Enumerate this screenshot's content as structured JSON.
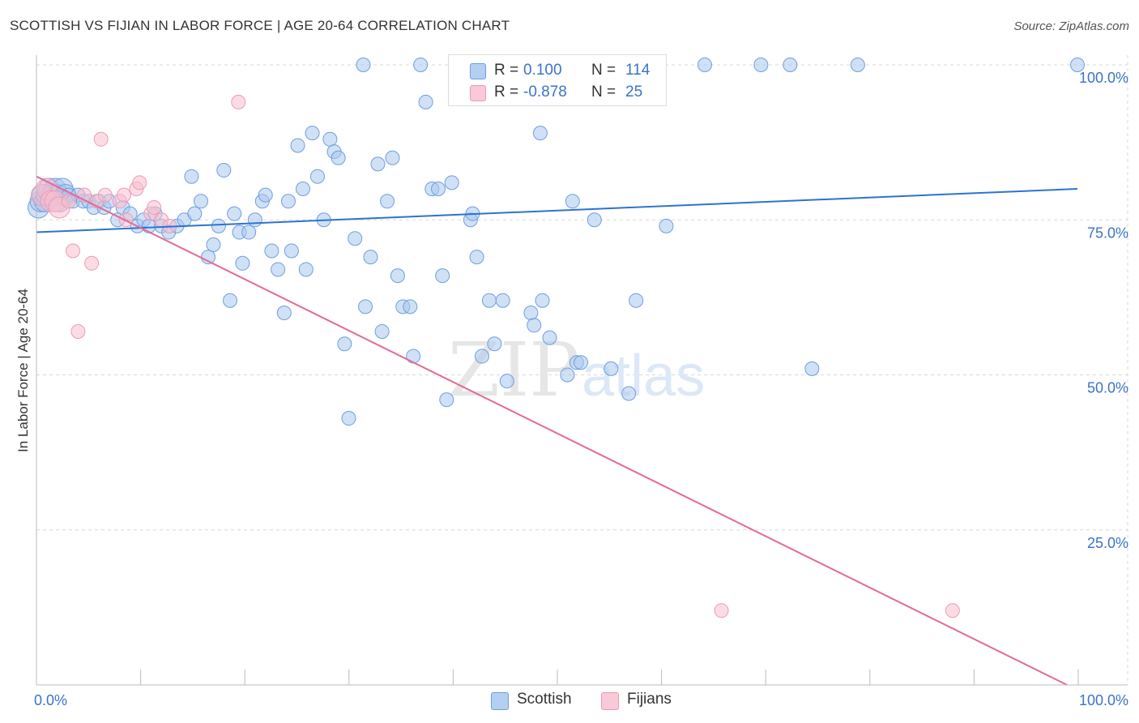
{
  "title": "SCOTTISH VS FIJIAN IN LABOR FORCE | AGE 20-64 CORRELATION CHART",
  "source": "Source: ZipAtlas.com",
  "watermark": {
    "zip": "ZIP",
    "atlas": "atlas"
  },
  "legend": {
    "r_label": "R =",
    "n_label": "N =",
    "series": [
      {
        "name": "Scottish",
        "r": "0.100",
        "n": "114",
        "color": "#9dc0ec"
      },
      {
        "name": "Fijians",
        "r": "-0.878",
        "n": "25",
        "color": "#f5b8cc"
      }
    ]
  },
  "colors": {
    "scottish_fill": "#a9c8ef",
    "scottish_stroke": "#6f9ede",
    "scottish_line": "#2e72d2",
    "fijian_fill": "#f7bfd0",
    "fijian_stroke": "#ee9ab5",
    "fijian_line": "#e36a96",
    "tick_label": "#3a73c8",
    "grid": "#d8d8d8"
  },
  "chart_data": {
    "type": "scatter",
    "xlabel": "",
    "ylabel": "In Labor Force | Age 20-64",
    "xlim": [
      0,
      100
    ],
    "ylim": [
      0,
      100
    ],
    "x_tick_labels": [
      {
        "value": 0,
        "label": "0.0%"
      },
      {
        "value": 100,
        "label": "100.0%"
      }
    ],
    "y_tick_labels": [
      {
        "value": 25,
        "label": "25.0%"
      },
      {
        "value": 50,
        "label": "50.0%"
      },
      {
        "value": 75,
        "label": "75.0%"
      },
      {
        "value": 100,
        "label": "100.0%"
      }
    ],
    "grid": true,
    "legend_position": "top-center",
    "series": [
      {
        "name": "Scottish",
        "trend": {
          "x": [
            0,
            100
          ],
          "y": [
            73.0,
            80.0
          ]
        },
        "points": [
          [
            0.2,
            77
          ],
          [
            0.4,
            78
          ],
          [
            0.6,
            79
          ],
          [
            0.8,
            78
          ],
          [
            1.0,
            79
          ],
          [
            1.2,
            80
          ],
          [
            1.5,
            79
          ],
          [
            1.8,
            80
          ],
          [
            2.0,
            79
          ],
          [
            2.2,
            78
          ],
          [
            2.5,
            80
          ],
          [
            2.8,
            79
          ],
          [
            3.1,
            79
          ],
          [
            3.5,
            78
          ],
          [
            4.0,
            79
          ],
          [
            4.5,
            78
          ],
          [
            5.0,
            78
          ],
          [
            5.5,
            77
          ],
          [
            6.0,
            78
          ],
          [
            6.5,
            77
          ],
          [
            7.0,
            78
          ],
          [
            7.8,
            75
          ],
          [
            8.3,
            77
          ],
          [
            9.0,
            76
          ],
          [
            9.7,
            74
          ],
          [
            10.3,
            75
          ],
          [
            10.8,
            74
          ],
          [
            11.4,
            76
          ],
          [
            12.0,
            74
          ],
          [
            12.7,
            73
          ],
          [
            13.5,
            74
          ],
          [
            14.2,
            75
          ],
          [
            14.9,
            82
          ],
          [
            15.2,
            76
          ],
          [
            15.8,
            78
          ],
          [
            16.5,
            69
          ],
          [
            17.0,
            71
          ],
          [
            17.5,
            74
          ],
          [
            18.0,
            83
          ],
          [
            18.6,
            62
          ],
          [
            19.0,
            76
          ],
          [
            19.5,
            73
          ],
          [
            19.8,
            68
          ],
          [
            20.4,
            73
          ],
          [
            21.0,
            75
          ],
          [
            21.7,
            78
          ],
          [
            22.0,
            79
          ],
          [
            22.6,
            70
          ],
          [
            23.2,
            67
          ],
          [
            23.8,
            60
          ],
          [
            24.2,
            78
          ],
          [
            24.5,
            70
          ],
          [
            25.1,
            87
          ],
          [
            25.6,
            80
          ],
          [
            25.9,
            67
          ],
          [
            26.5,
            89
          ],
          [
            27.0,
            82
          ],
          [
            27.6,
            75
          ],
          [
            28.2,
            88
          ],
          [
            28.6,
            86
          ],
          [
            29.0,
            85
          ],
          [
            29.6,
            55
          ],
          [
            30.0,
            43
          ],
          [
            30.6,
            72
          ],
          [
            31.4,
            100
          ],
          [
            31.6,
            61
          ],
          [
            32.1,
            69
          ],
          [
            32.8,
            84
          ],
          [
            33.2,
            57
          ],
          [
            33.7,
            78
          ],
          [
            34.2,
            85
          ],
          [
            34.7,
            66
          ],
          [
            35.2,
            61
          ],
          [
            35.9,
            61
          ],
          [
            36.2,
            53
          ],
          [
            36.9,
            100
          ],
          [
            37.4,
            94
          ],
          [
            38.0,
            80
          ],
          [
            38.6,
            80
          ],
          [
            39.0,
            66
          ],
          [
            39.4,
            46
          ],
          [
            39.9,
            81
          ],
          [
            41.7,
            75
          ],
          [
            41.9,
            76
          ],
          [
            42.3,
            69
          ],
          [
            42.8,
            53
          ],
          [
            43.5,
            62
          ],
          [
            44.0,
            55
          ],
          [
            44.3,
            96
          ],
          [
            44.8,
            62
          ],
          [
            45.2,
            49
          ],
          [
            45.7,
            100
          ],
          [
            46.3,
            100
          ],
          [
            47.5,
            60
          ],
          [
            47.8,
            58
          ],
          [
            48.4,
            89
          ],
          [
            48.6,
            62
          ],
          [
            49.3,
            56
          ],
          [
            51.0,
            50
          ],
          [
            51.5,
            78
          ],
          [
            51.9,
            52
          ],
          [
            52.3,
            52
          ],
          [
            53.6,
            75
          ],
          [
            55.2,
            51
          ],
          [
            56.9,
            47
          ],
          [
            57.6,
            62
          ],
          [
            59.0,
            100
          ],
          [
            60.5,
            74
          ],
          [
            64.2,
            100
          ],
          [
            69.6,
            100
          ],
          [
            72.4,
            100
          ],
          [
            74.5,
            51
          ],
          [
            78.9,
            100
          ],
          [
            100.0,
            100
          ]
        ]
      },
      {
        "name": "Fijians",
        "trend": {
          "x": [
            0,
            99
          ],
          "y": [
            82.0,
            0.0
          ]
        },
        "points": [
          [
            0.5,
            79
          ],
          [
            1.0,
            80
          ],
          [
            1.4,
            78
          ],
          [
            1.8,
            78
          ],
          [
            2.2,
            77
          ],
          [
            3.1,
            78
          ],
          [
            3.5,
            70
          ],
          [
            4.0,
            57
          ],
          [
            4.6,
            79
          ],
          [
            5.3,
            68
          ],
          [
            5.8,
            78
          ],
          [
            6.2,
            88
          ],
          [
            6.6,
            79
          ],
          [
            8.0,
            78
          ],
          [
            8.4,
            79
          ],
          [
            8.6,
            75
          ],
          [
            9.6,
            80
          ],
          [
            9.9,
            81
          ],
          [
            11.0,
            76
          ],
          [
            11.3,
            77
          ],
          [
            12.0,
            75
          ],
          [
            12.8,
            74
          ],
          [
            19.4,
            94
          ],
          [
            65.8,
            12
          ],
          [
            88.0,
            12
          ]
        ]
      }
    ]
  }
}
